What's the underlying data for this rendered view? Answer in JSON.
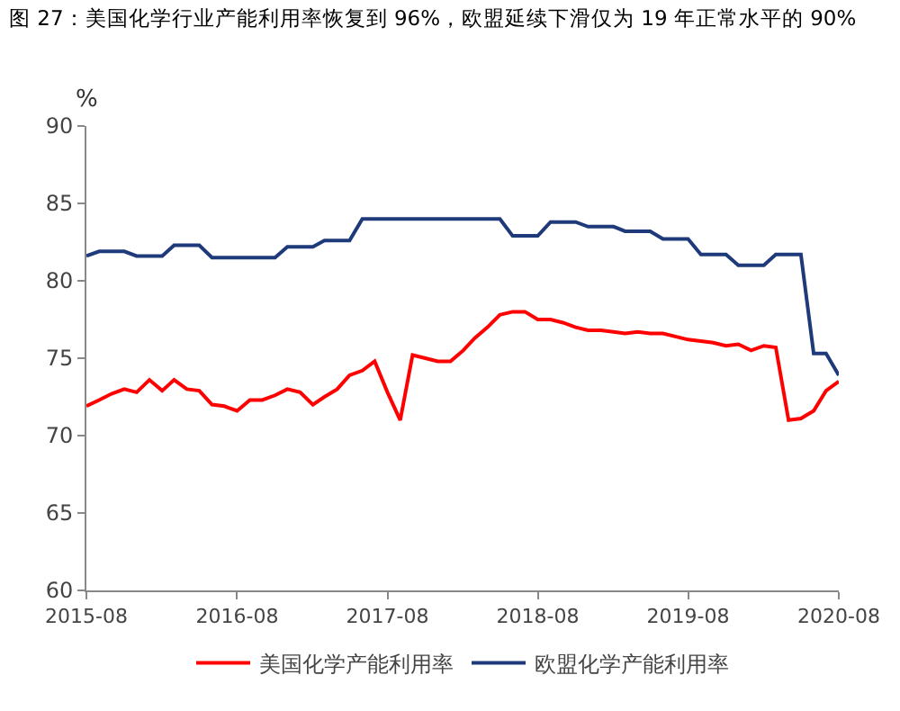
{
  "chart_data": {
    "type": "line",
    "title": "图 27：美国化学行业产能利用率恢复到 96%，欧盟延续下滑仅为 19 年正常水平的 90%",
    "ylabel": "%",
    "x": [
      "2015-08",
      "2015-09",
      "2015-10",
      "2015-11",
      "2015-12",
      "2016-01",
      "2016-02",
      "2016-03",
      "2016-04",
      "2016-05",
      "2016-06",
      "2016-07",
      "2016-08",
      "2016-09",
      "2016-10",
      "2016-11",
      "2016-12",
      "2017-01",
      "2017-02",
      "2017-03",
      "2017-04",
      "2017-05",
      "2017-06",
      "2017-07",
      "2017-08",
      "2017-09",
      "2017-10",
      "2017-11",
      "2017-12",
      "2018-01",
      "2018-02",
      "2018-03",
      "2018-04",
      "2018-05",
      "2018-06",
      "2018-07",
      "2018-08",
      "2018-09",
      "2018-10",
      "2018-11",
      "2018-12",
      "2019-01",
      "2019-02",
      "2019-03",
      "2019-04",
      "2019-05",
      "2019-06",
      "2019-07",
      "2019-08",
      "2019-09",
      "2019-10",
      "2019-11",
      "2019-12",
      "2020-01",
      "2020-02",
      "2020-03",
      "2020-04",
      "2020-05",
      "2020-06",
      "2020-07",
      "2020-08"
    ],
    "series": [
      {
        "name": "美国化学产能利用率",
        "color": "#ff0000",
        "values": [
          71.9,
          72.3,
          72.7,
          73.0,
          72.8,
          73.6,
          72.9,
          73.6,
          73.0,
          72.9,
          72.0,
          71.9,
          71.6,
          72.3,
          72.3,
          72.6,
          73.0,
          72.8,
          72.0,
          72.5,
          73.0,
          73.9,
          74.2,
          74.8,
          72.8,
          71.0,
          75.2,
          75.0,
          74.8,
          74.8,
          75.5,
          76.3,
          77.0,
          77.8,
          78.0,
          78.0,
          77.5,
          77.5,
          77.3,
          77.0,
          76.8,
          76.8,
          76.7,
          76.6,
          76.7,
          76.6,
          76.6,
          76.4,
          76.2,
          76.1,
          76.0,
          75.8,
          75.9,
          75.5,
          75.8,
          75.7,
          71.0,
          71.1,
          71.6,
          72.9,
          73.5
        ]
      },
      {
        "name": "欧盟化学产能利用率",
        "color": "#1f3a7a",
        "values": [
          81.6,
          81.9,
          81.9,
          81.9,
          81.6,
          81.6,
          81.6,
          82.3,
          82.3,
          82.3,
          81.5,
          81.5,
          81.5,
          81.5,
          81.5,
          81.5,
          82.2,
          82.2,
          82.2,
          82.6,
          82.6,
          82.6,
          84.0,
          84.0,
          84.0,
          84.0,
          84.0,
          84.0,
          84.0,
          84.0,
          84.0,
          84.0,
          84.0,
          84.0,
          82.9,
          82.9,
          82.9,
          83.8,
          83.8,
          83.8,
          83.5,
          83.5,
          83.5,
          83.2,
          83.2,
          83.2,
          82.7,
          82.7,
          82.7,
          81.7,
          81.7,
          81.7,
          81.0,
          81.0,
          81.0,
          81.7,
          81.7,
          81.7,
          75.3,
          75.3,
          73.9
        ]
      }
    ],
    "xlim": [
      "2015-08",
      "2020-08"
    ],
    "xticks": [
      "2015-08",
      "2016-08",
      "2017-08",
      "2018-08",
      "2019-08",
      "2020-08"
    ],
    "ylim": [
      60,
      90
    ],
    "yticks": [
      60,
      65,
      70,
      75,
      80,
      85,
      90
    ],
    "grid": false,
    "legend": "bottom",
    "marker": "none",
    "line_style": "solid"
  }
}
